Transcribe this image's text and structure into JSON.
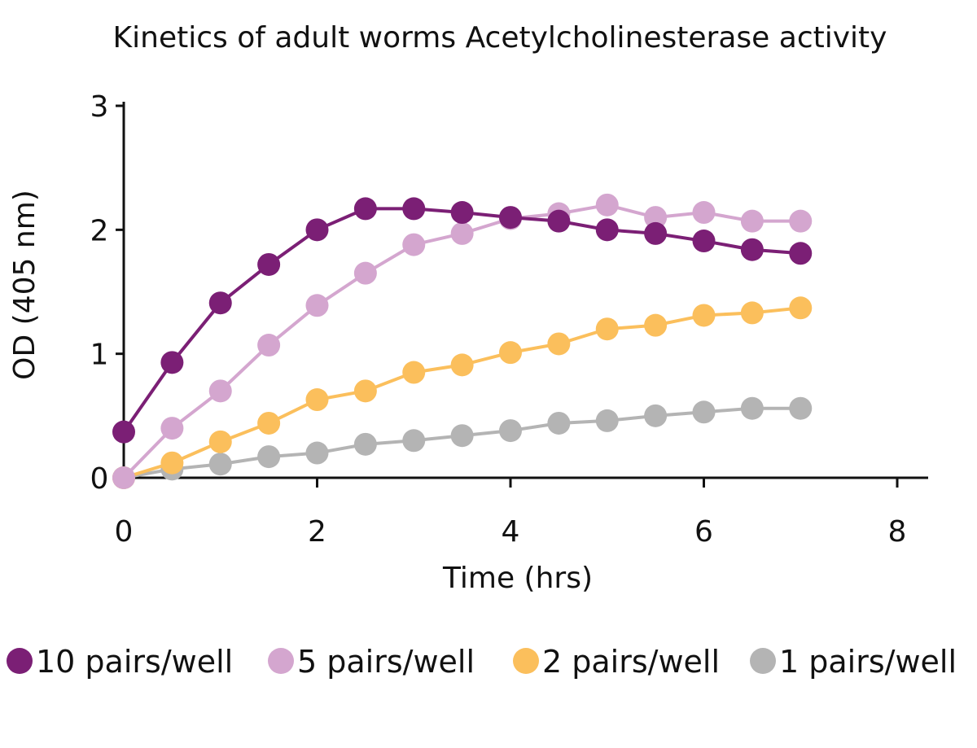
{
  "chart_data": {
    "type": "line",
    "title": "Kinetics of adult worms Acetylcholinesterase activity",
    "xlabel": "Time (hrs)",
    "ylabel": "OD (405 nm)",
    "xlim": [
      0,
      8
    ],
    "ylim": [
      0,
      3
    ],
    "x_ticks": [
      0,
      2,
      4,
      6,
      8
    ],
    "y_ticks": [
      0,
      1,
      2,
      3
    ],
    "grid": false,
    "legend_position": "bottom",
    "x": [
      0,
      0.5,
      1,
      1.5,
      2,
      2.5,
      3,
      3.5,
      4,
      4.5,
      5,
      5.5,
      6,
      6.5,
      7
    ],
    "series": [
      {
        "name": "10 pairs/well",
        "color": "#7b1f75",
        "values": [
          0.37,
          0.93,
          1.41,
          1.72,
          2.0,
          2.17,
          2.17,
          2.14,
          2.1,
          2.07,
          2.0,
          1.97,
          1.91,
          1.84,
          1.81
        ]
      },
      {
        "name": "5 pairs/well",
        "color": "#d4a6cf",
        "values": [
          0.0,
          0.4,
          0.7,
          1.07,
          1.39,
          1.65,
          1.88,
          1.97,
          2.09,
          2.13,
          2.2,
          2.1,
          2.14,
          2.07,
          2.07
        ]
      },
      {
        "name": "2 pairs/well",
        "color": "#fbbf5c",
        "values": [
          0.0,
          0.12,
          0.29,
          0.44,
          0.63,
          0.7,
          0.85,
          0.91,
          1.01,
          1.08,
          1.2,
          1.23,
          1.31,
          1.33,
          1.37
        ]
      },
      {
        "name": "1 pairs/well",
        "color": "#b4b4b4",
        "values": [
          0.0,
          0.07,
          0.11,
          0.17,
          0.2,
          0.27,
          0.3,
          0.34,
          0.38,
          0.44,
          0.46,
          0.5,
          0.53,
          0.56,
          0.56
        ]
      }
    ]
  }
}
